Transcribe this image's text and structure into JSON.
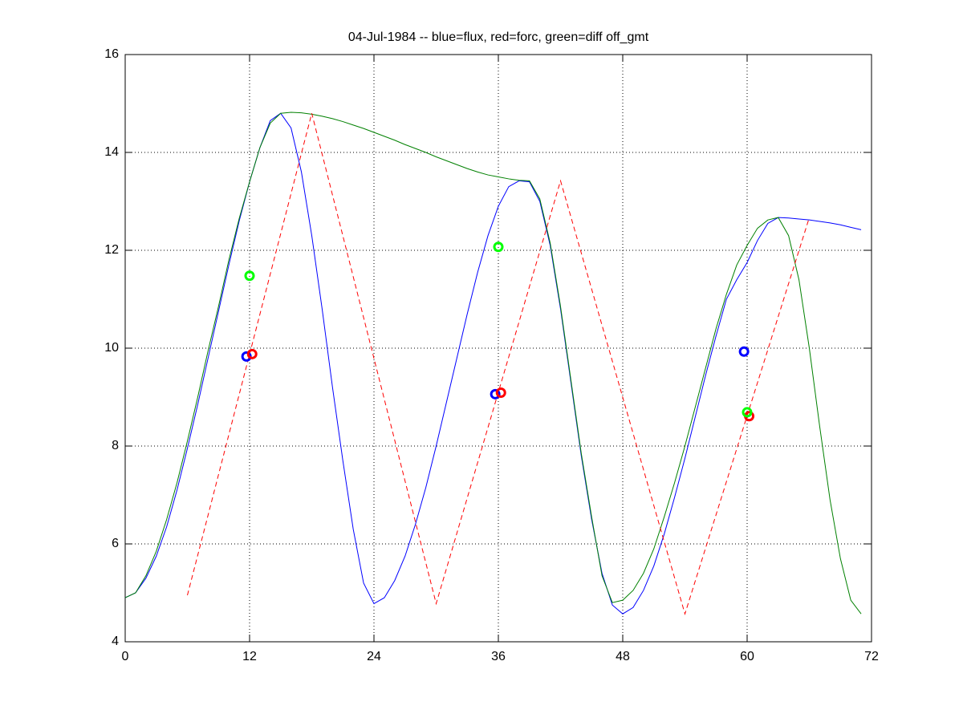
{
  "chart_data": {
    "type": "line",
    "title": "04-Jul-1984 -- blue=flux, red=forc, green=diff off_gmt",
    "xlim": [
      0,
      72
    ],
    "xticks": [
      0,
      12,
      24,
      36,
      48,
      60,
      72
    ],
    "ylim": [
      4,
      16
    ],
    "yticks": [
      4,
      6,
      8,
      10,
      12,
      14,
      16
    ],
    "grid": true,
    "series": [
      {
        "color": "#0000ff",
        "style": "solid",
        "x": [
          0,
          1,
          2,
          3,
          4,
          5,
          6,
          7,
          8,
          9,
          10,
          11,
          12,
          13,
          14,
          15,
          16,
          17,
          18,
          19,
          20,
          21,
          22,
          23,
          24,
          25,
          26,
          27,
          28,
          29,
          30,
          31,
          32,
          33,
          34,
          35,
          36,
          37,
          38,
          39,
          40,
          41,
          42,
          43,
          44,
          45,
          46,
          47,
          48,
          49,
          50,
          51,
          52,
          53,
          54,
          55,
          56,
          57,
          58,
          59,
          60,
          61,
          62,
          63,
          64,
          65,
          66,
          67,
          68,
          69,
          70,
          71
        ],
        "values": [
          4.9,
          5.0,
          5.3,
          5.75,
          6.35,
          7.1,
          7.95,
          8.85,
          9.8,
          10.75,
          11.7,
          12.6,
          13.4,
          14.1,
          14.65,
          14.8,
          14.5,
          13.6,
          12.3,
          10.8,
          9.2,
          7.7,
          6.3,
          5.2,
          4.78,
          4.9,
          5.25,
          5.75,
          6.4,
          7.15,
          8.0,
          8.9,
          9.8,
          10.7,
          11.55,
          12.3,
          12.9,
          13.3,
          13.42,
          13.4,
          13.0,
          12.1,
          10.8,
          9.3,
          7.8,
          6.5,
          5.4,
          4.75,
          4.57,
          4.7,
          5.05,
          5.55,
          6.2,
          6.95,
          7.75,
          8.6,
          9.45,
          10.25,
          11.0,
          11.4,
          11.75,
          12.2,
          12.55,
          12.67,
          12.66,
          12.64,
          12.62,
          12.59,
          12.56,
          12.52,
          12.47,
          12.42
        ]
      },
      {
        "color": "#008000",
        "style": "solid",
        "x": [
          0,
          1,
          2,
          3,
          4,
          5,
          6,
          7,
          8,
          9,
          10,
          11,
          12,
          13,
          14,
          15,
          16,
          17,
          18,
          19,
          20,
          21,
          22,
          23,
          24,
          25,
          26,
          27,
          28,
          29,
          30,
          31,
          32,
          33,
          34,
          35,
          36,
          37,
          38,
          39,
          40,
          41,
          42,
          43,
          44,
          45,
          46,
          47,
          48,
          49,
          50,
          51,
          52,
          53,
          54,
          55,
          56,
          57,
          58,
          59,
          60,
          61,
          62,
          63,
          64,
          65,
          66,
          67,
          68,
          69,
          70,
          71
        ],
        "values": [
          4.9,
          5.0,
          5.35,
          5.85,
          6.5,
          7.25,
          8.1,
          9.0,
          9.95,
          10.85,
          11.8,
          12.65,
          13.4,
          14.1,
          14.6,
          14.8,
          14.82,
          14.81,
          14.78,
          14.74,
          14.69,
          14.63,
          14.56,
          14.49,
          14.41,
          14.33,
          14.25,
          14.16,
          14.08,
          14.0,
          13.91,
          13.83,
          13.75,
          13.67,
          13.6,
          13.54,
          13.5,
          13.46,
          13.43,
          13.42,
          13.05,
          12.15,
          10.85,
          9.35,
          7.85,
          6.55,
          5.35,
          4.8,
          4.85,
          5.05,
          5.4,
          5.9,
          6.55,
          7.25,
          8.0,
          8.8,
          9.6,
          10.4,
          11.1,
          11.7,
          12.1,
          12.45,
          12.62,
          12.67,
          12.3,
          11.4,
          10.0,
          8.4,
          6.9,
          5.7,
          4.85,
          4.57
        ]
      },
      {
        "color": "#ff0000",
        "style": "dashed",
        "x": [
          6,
          18,
          30,
          42,
          54,
          66
        ],
        "values": [
          4.95,
          14.8,
          4.78,
          13.42,
          4.57,
          12.67
        ]
      },
      {
        "color": "#0000ff",
        "style": "marker",
        "x": [
          11.7,
          35.7,
          59.7
        ],
        "values": [
          9.83,
          9.06,
          9.93
        ]
      },
      {
        "color": "#ff0000",
        "style": "marker",
        "x": [
          12.25,
          36.25,
          60.2
        ],
        "values": [
          9.88,
          9.09,
          8.61
        ]
      },
      {
        "color": "#00ff00",
        "style": "marker",
        "x": [
          12.0,
          36.0,
          60.0
        ],
        "values": [
          11.48,
          12.07,
          8.69
        ]
      }
    ]
  }
}
